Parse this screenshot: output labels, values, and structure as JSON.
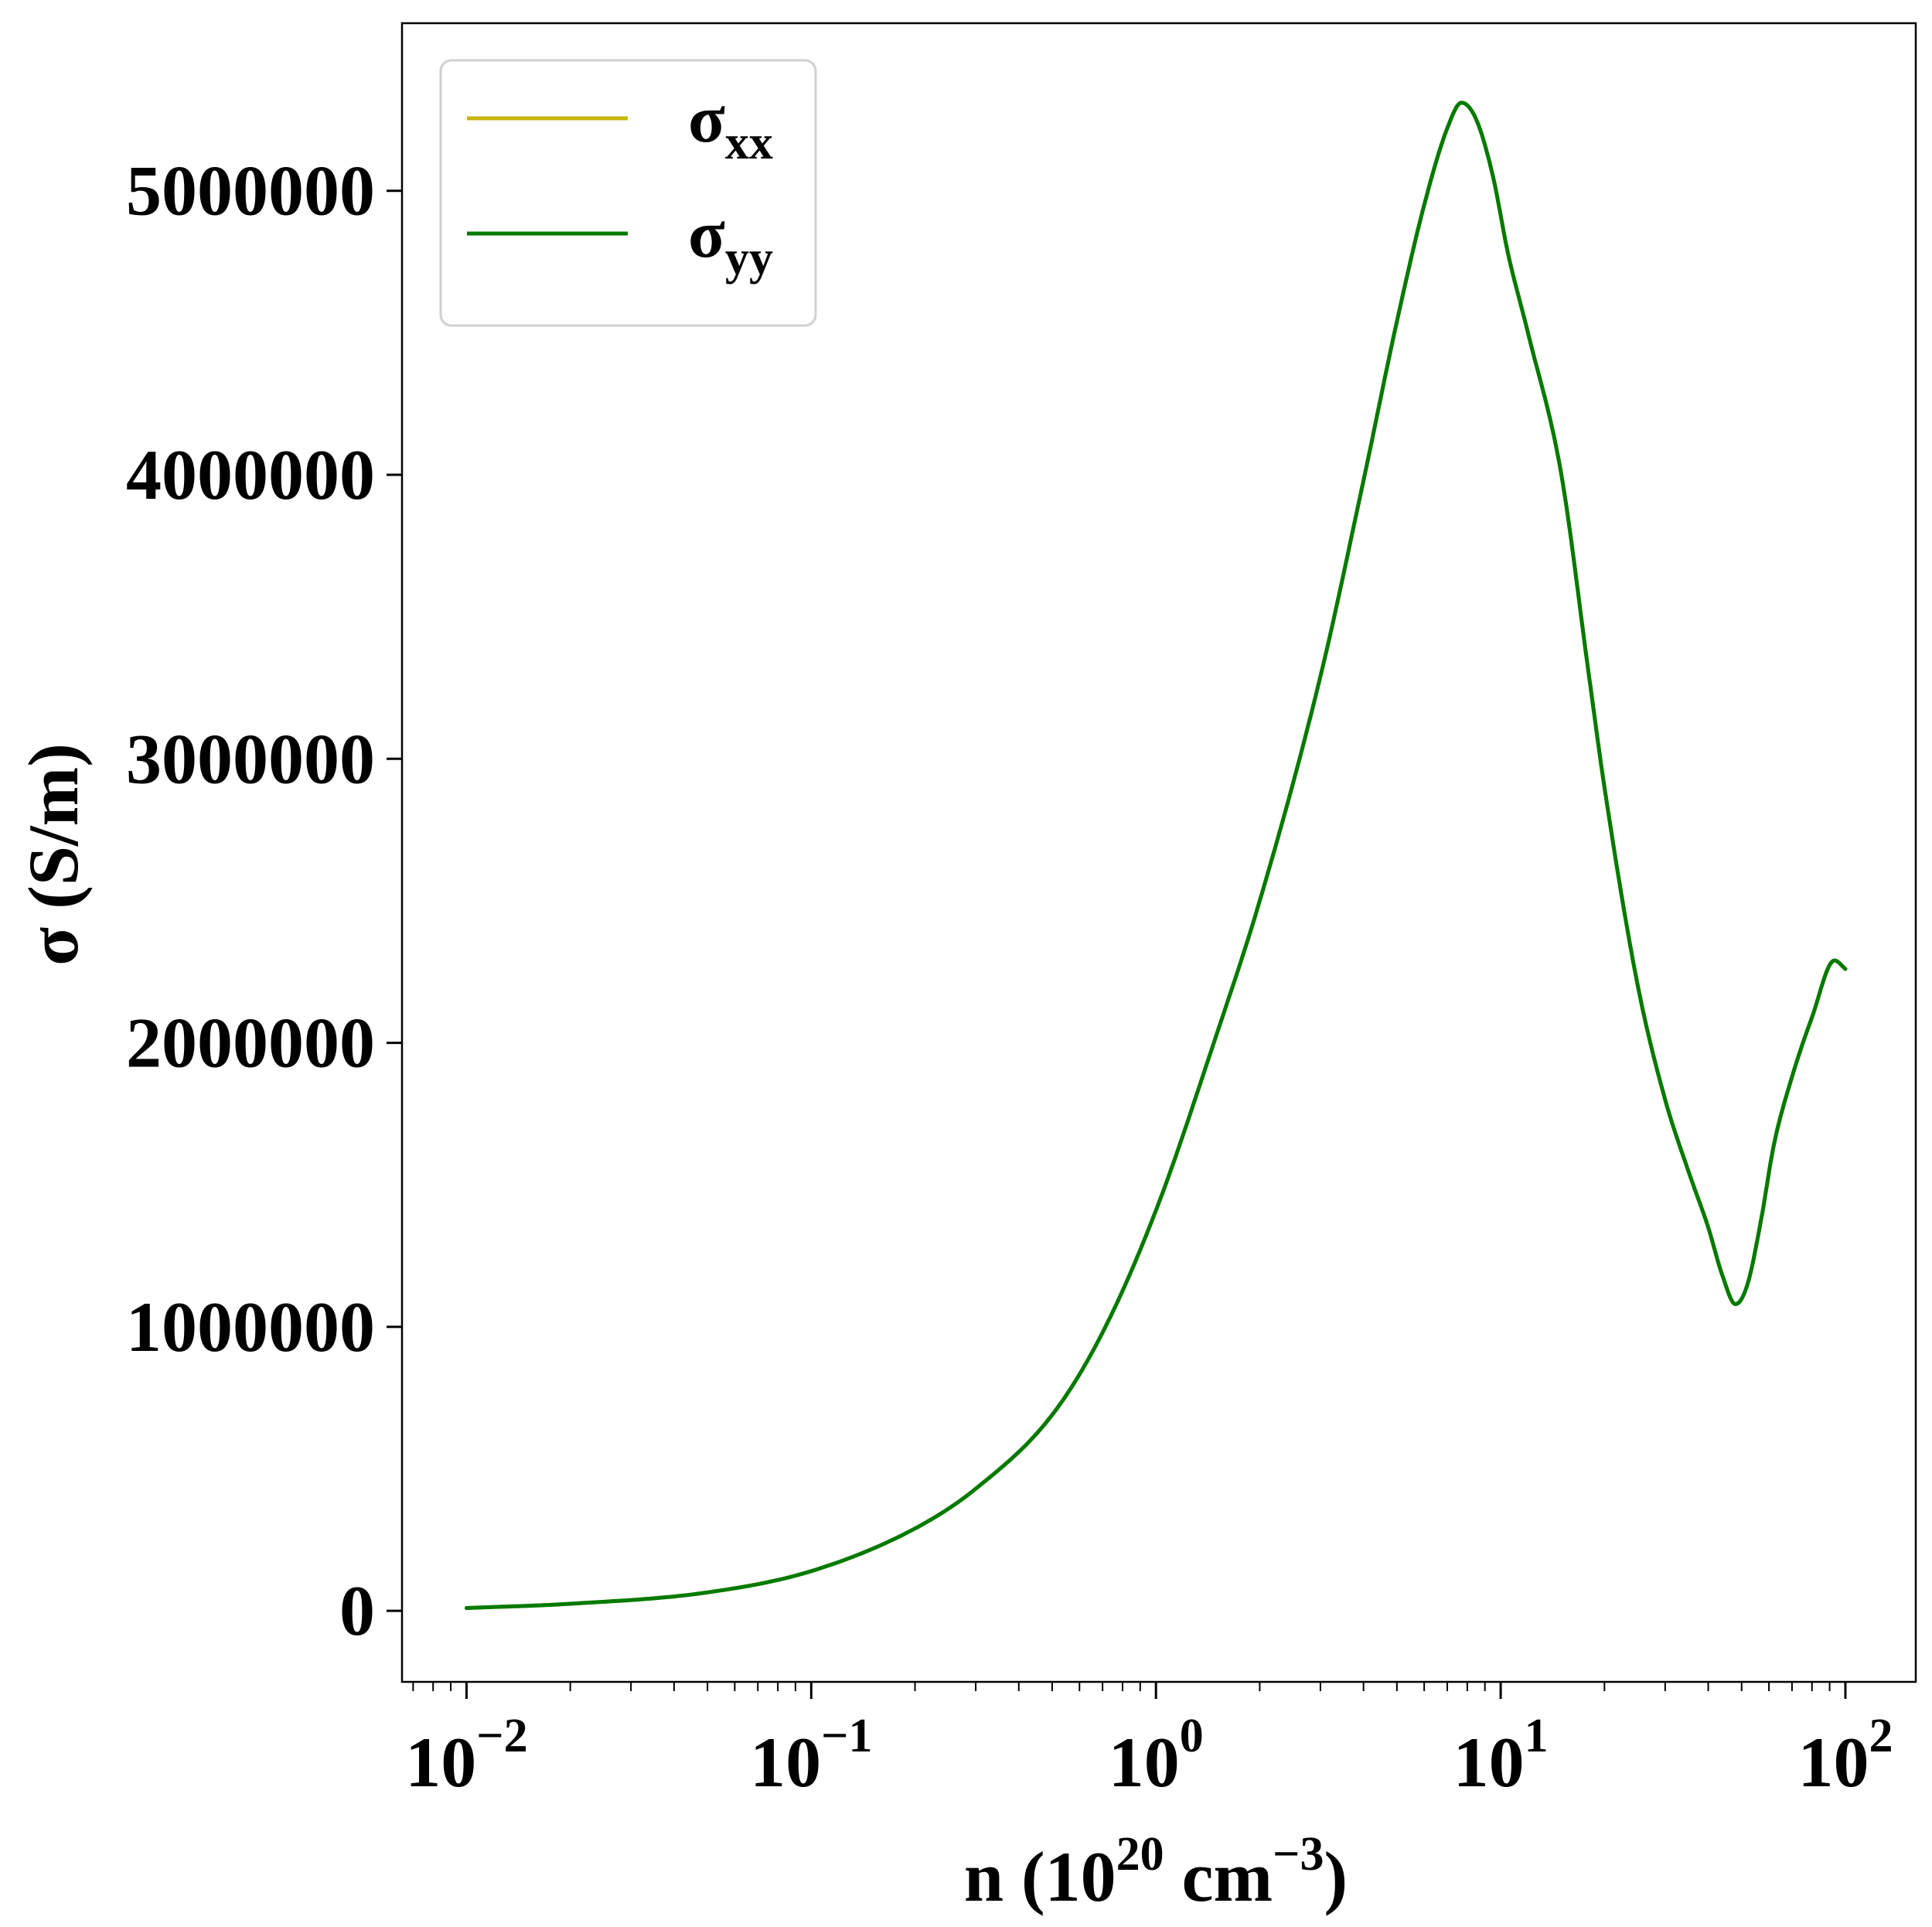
{
  "chart_data": {
    "type": "line",
    "xscale": "log",
    "xlim": [
      0.0065,
      160
    ],
    "ylim": [
      -250000,
      5590000
    ],
    "xlabel": {
      "base": "n (10",
      "exp1": "20",
      "mid": " cm",
      "exp2": "−3",
      "end": ")"
    },
    "ylabel": "σ (S/m)",
    "x_ticks": [
      {
        "value": 0.01,
        "base": "10",
        "exp": "−2"
      },
      {
        "value": 0.1,
        "base": "10",
        "exp": "−1"
      },
      {
        "value": 1,
        "base": "10",
        "exp": "0"
      },
      {
        "value": 10,
        "base": "10",
        "exp": "1"
      },
      {
        "value": 100,
        "base": "10",
        "exp": "2"
      }
    ],
    "y_ticks": [
      {
        "value": 0,
        "label": "0"
      },
      {
        "value": 1000000,
        "label": "1000000"
      },
      {
        "value": 2000000,
        "label": "2000000"
      },
      {
        "value": 3000000,
        "label": "3000000"
      },
      {
        "value": 4000000,
        "label": "4000000"
      },
      {
        "value": 5000000,
        "label": "5000000"
      }
    ],
    "grid": false,
    "legend_position": "top-left",
    "series": [
      {
        "name": "σ",
        "subscript": "xx",
        "color": "#c8b400",
        "x": [
          0.01,
          0.02,
          0.05,
          0.1,
          0.2,
          0.3,
          0.5,
          0.7,
          1,
          1.5,
          2,
          3,
          4,
          5,
          6,
          7,
          7.7,
          8.5,
          9.5,
          10.5,
          12,
          15,
          18,
          20,
          25,
          30,
          35,
          40,
          44,
          48,
          52,
          57,
          62,
          70,
          80,
          93,
          100
        ],
        "y": [
          10000,
          25000,
          65000,
          140000,
          290000,
          430000,
          690000,
          980000,
          1410000,
          2030000,
          2500000,
          3290000,
          3980000,
          4540000,
          4950000,
          5220000,
          5310000,
          5250000,
          5050000,
          4780000,
          4500000,
          4000000,
          3300000,
          2900000,
          2200000,
          1800000,
          1550000,
          1350000,
          1180000,
          1080000,
          1150000,
          1380000,
          1640000,
          1880000,
          2090000,
          2290000,
          2260000
        ]
      },
      {
        "name": "σ",
        "subscript": "yy",
        "color": "#007a00",
        "x": [
          0.01,
          0.02,
          0.05,
          0.1,
          0.2,
          0.3,
          0.5,
          0.7,
          1,
          1.5,
          2,
          3,
          4,
          5,
          6,
          7,
          7.7,
          8.5,
          9.5,
          10.5,
          12,
          15,
          18,
          20,
          25,
          30,
          35,
          40,
          44,
          48,
          52,
          57,
          62,
          70,
          80,
          93,
          100
        ],
        "y": [
          10000,
          25000,
          65000,
          140000,
          290000,
          430000,
          690000,
          980000,
          1410000,
          2030000,
          2500000,
          3290000,
          3980000,
          4540000,
          4950000,
          5220000,
          5310000,
          5250000,
          5050000,
          4780000,
          4500000,
          4000000,
          3300000,
          2900000,
          2200000,
          1800000,
          1550000,
          1350000,
          1180000,
          1080000,
          1150000,
          1380000,
          1640000,
          1880000,
          2090000,
          2290000,
          2260000
        ]
      }
    ]
  }
}
